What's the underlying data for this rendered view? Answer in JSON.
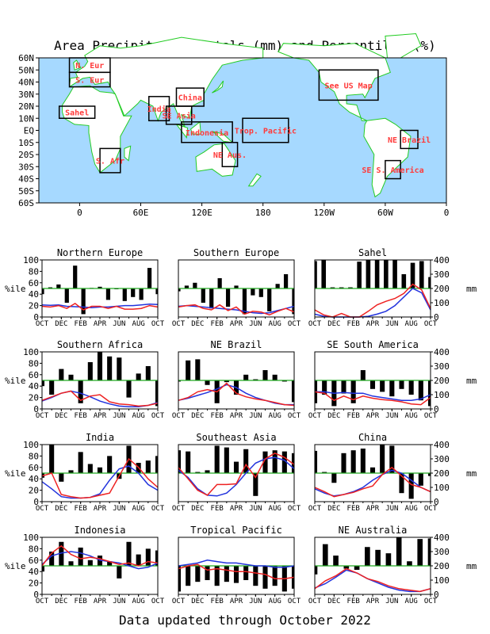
{
  "title": "Area Precipitation Totals (mm) and Percentiles (%)",
  "footer": "Data updated through October 2022",
  "map": {
    "lat_labels": [
      "60N",
      "50N",
      "40N",
      "30N",
      "20N",
      "10N",
      "EQ",
      "10S",
      "20S",
      "30S",
      "40S",
      "50S",
      "60S"
    ],
    "lon_labels": [
      "0",
      "60E",
      "120E",
      "180",
      "120W",
      "60W",
      "0"
    ],
    "lon_values": [
      0,
      60,
      120,
      180,
      240,
      300,
      360
    ],
    "lon_range": [
      -40,
      360
    ],
    "lat_range": [
      -60,
      60
    ],
    "colors": {
      "ocean": "#a6d9ff",
      "land": "#ffffff",
      "coast": "#22cc22",
      "box": "#000000",
      "label": "#ff3a3a"
    },
    "regions": [
      {
        "label": "N. Eur",
        "lon": [
          -10,
          30
        ],
        "lat": [
          48,
          60
        ]
      },
      {
        "label": "S. Eur",
        "lon": [
          -10,
          30
        ],
        "lat": [
          36,
          48
        ]
      },
      {
        "label": "Sahel",
        "lon": [
          -20,
          15
        ],
        "lat": [
          10,
          20
        ]
      },
      {
        "label": "S. Afr",
        "lon": [
          20,
          40
        ],
        "lat": [
          -35,
          -15
        ]
      },
      {
        "label": "India",
        "lon": [
          68,
          88
        ],
        "lat": [
          8,
          28
        ]
      },
      {
        "label": "China",
        "lon": [
          95,
          122
        ],
        "lat": [
          20,
          35
        ]
      },
      {
        "label": "SE Asia",
        "lon": [
          85,
          110
        ],
        "lat": [
          5,
          20
        ]
      },
      {
        "label": "Indonesia",
        "lon": [
          100,
          150
        ],
        "lat": [
          -10,
          7
        ]
      },
      {
        "label": "Trop. Pacific",
        "lon": [
          160,
          205
        ],
        "lat": [
          -10,
          10
        ]
      },
      {
        "label": "NE Aus.",
        "lon": [
          140,
          155
        ],
        "lat": [
          -30,
          -10
        ]
      },
      {
        "label": "See US Map",
        "lon": [
          235,
          293
        ],
        "lat": [
          25,
          50
        ]
      },
      {
        "label": "NE Brazil",
        "lon": [
          315,
          332
        ],
        "lat": [
          -15,
          0
        ]
      },
      {
        "label": "SE S. America",
        "lon": [
          300,
          315
        ],
        "lat": [
          -40,
          -25
        ]
      }
    ]
  },
  "panel_axis": {
    "left_label": "%ile",
    "right_label": "mm",
    "left_ticks": [
      "0",
      "20",
      "40",
      "60",
      "80",
      "100"
    ],
    "right_ticks": [
      "0",
      "100",
      "200",
      "300",
      "400"
    ],
    "month_ticks": [
      "OCT",
      "DEC",
      "FEB",
      "APR",
      "JUN",
      "AUG",
      "OCT"
    ],
    "bar_baseline_percentile": 50,
    "colors": {
      "bar": "#000000",
      "observed_mm": "#ee2222",
      "normal_mm": "#2233dd",
      "median_line": "#22aa22"
    }
  },
  "chart_data": [
    {
      "type": "bar",
      "title": "Northern Europe",
      "ylim": [
        0,
        100
      ],
      "y2lim": [
        0,
        400
      ],
      "percentiles": [
        40,
        52,
        57,
        25,
        90,
        5,
        51,
        53,
        30,
        50,
        28,
        35,
        30,
        86,
        40
      ],
      "observed_mm": [
        75,
        70,
        80,
        60,
        95,
        50,
        75,
        75,
        60,
        75,
        55,
        55,
        60,
        80,
        70
      ],
      "normal_mm": [
        85,
        82,
        85,
        75,
        72,
        70,
        65,
        70,
        70,
        75,
        80,
        80,
        85,
        90,
        88
      ]
    },
    {
      "type": "bar",
      "title": "Southern Europe",
      "ylim": [
        0,
        100
      ],
      "y2lim": [
        0,
        400
      ],
      "percentiles": [
        45,
        55,
        60,
        25,
        15,
        68,
        18,
        55,
        5,
        38,
        35,
        10,
        58,
        75,
        5
      ],
      "observed_mm": [
        70,
        80,
        85,
        60,
        50,
        85,
        45,
        70,
        20,
        40,
        35,
        15,
        40,
        60,
        35
      ],
      "normal_mm": [
        75,
        80,
        75,
        70,
        65,
        60,
        55,
        50,
        40,
        30,
        25,
        30,
        45,
        60,
        75
      ]
    },
    {
      "type": "bar",
      "title": "Sahel",
      "ylim": [
        0,
        100
      ],
      "y2lim": [
        0,
        400
      ],
      "percentiles": [
        98,
        100,
        52,
        52,
        52,
        97,
        100,
        100,
        100,
        100,
        75,
        95,
        98,
        70
      ],
      "observed_mm": [
        50,
        15,
        0,
        25,
        0,
        0,
        40,
        85,
        110,
        130,
        165,
        230,
        190,
        60
      ],
      "normal_mm": [
        20,
        5,
        0,
        0,
        0,
        0,
        5,
        20,
        40,
        80,
        140,
        200,
        170,
        50
      ]
    },
    {
      "type": "bar",
      "title": "Southern Africa",
      "ylim": [
        0,
        100
      ],
      "y2lim": [
        0,
        400
      ],
      "percentiles": [
        40,
        25,
        70,
        60,
        10,
        82,
        100,
        92,
        90,
        20,
        62,
        75,
        5
      ],
      "observed_mm": [
        60,
        85,
        110,
        125,
        60,
        90,
        100,
        50,
        35,
        30,
        20,
        25,
        40
      ],
      "normal_mm": [
        55,
        80,
        110,
        125,
        110,
        85,
        55,
        35,
        20,
        15,
        15,
        25,
        45
      ]
    },
    {
      "type": "bar",
      "title": "NE Brazil",
      "ylim": [
        0,
        100
      ],
      "y2lim": [
        0,
        400
      ],
      "percentiles": [
        48,
        85,
        87,
        42,
        10,
        47,
        25,
        60,
        52,
        68,
        60,
        48,
        12
      ],
      "observed_mm": [
        60,
        80,
        120,
        135,
        120,
        180,
        110,
        85,
        70,
        60,
        45,
        30,
        25
      ],
      "normal_mm": [
        60,
        75,
        95,
        115,
        140,
        170,
        150,
        110,
        80,
        60,
        40,
        30,
        30
      ]
    },
    {
      "type": "bar",
      "title": "SE South America",
      "ylim": [
        0,
        100
      ],
      "y2lim": [
        0,
        400
      ],
      "percentiles": [
        10,
        25,
        5,
        27,
        10,
        68,
        35,
        30,
        22,
        35,
        25,
        15,
        5
      ],
      "observed_mm": [
        120,
        110,
        60,
        90,
        65,
        90,
        75,
        65,
        60,
        50,
        35,
        30,
        80
      ],
      "normal_mm": [
        120,
        120,
        110,
        115,
        110,
        110,
        90,
        80,
        70,
        60,
        60,
        70,
        100
      ]
    },
    {
      "type": "bar",
      "title": "India",
      "ylim": [
        0,
        100
      ],
      "y2lim": [
        0,
        400
      ],
      "percentiles": [
        42,
        100,
        35,
        55,
        87,
        66,
        60,
        80,
        40,
        98,
        68,
        72,
        80
      ],
      "observed_mm": [
        180,
        200,
        50,
        35,
        25,
        30,
        45,
        60,
        180,
        300,
        240,
        160,
        100
      ],
      "normal_mm": [
        140,
        90,
        35,
        25,
        25,
        30,
        55,
        150,
        230,
        250,
        200,
        120,
        80
      ]
    },
    {
      "type": "bar",
      "title": "Southeast Asia",
      "ylim": [
        0,
        100
      ],
      "y2lim": [
        0,
        400
      ],
      "percentiles": [
        90,
        88,
        52,
        55,
        98,
        95,
        70,
        92,
        10,
        88,
        90,
        88,
        85
      ],
      "observed_mm": [
        240,
        160,
        80,
        45,
        120,
        120,
        125,
        260,
        170,
        300,
        340,
        310,
        260
      ],
      "normal_mm": [
        220,
        170,
        90,
        45,
        40,
        60,
        120,
        200,
        270,
        300,
        310,
        290,
        230
      ]
    },
    {
      "type": "bar",
      "title": "China",
      "ylim": [
        0,
        100
      ],
      "y2lim": [
        0,
        400
      ],
      "percentiles": [
        89,
        52,
        33,
        85,
        90,
        93,
        60,
        100,
        98,
        15,
        5,
        28,
        45
      ],
      "observed_mm": [
        100,
        70,
        35,
        50,
        65,
        90,
        110,
        190,
        240,
        180,
        120,
        100,
        70
      ],
      "normal_mm": [
        90,
        60,
        40,
        50,
        70,
        100,
        150,
        190,
        220,
        200,
        150,
        100,
        70
      ]
    },
    {
      "type": "bar",
      "title": "Indonesia",
      "ylim": [
        0,
        100
      ],
      "y2lim": [
        0,
        400
      ],
      "percentiles": [
        40,
        75,
        92,
        58,
        82,
        60,
        68,
        58,
        28,
        92,
        70,
        80,
        77
      ],
      "observed_mm": [
        200,
        290,
        340,
        280,
        250,
        260,
        250,
        230,
        210,
        220,
        200,
        230,
        220
      ],
      "normal_mm": [
        210,
        270,
        290,
        300,
        290,
        270,
        240,
        230,
        220,
        200,
        180,
        190,
        220
      ]
    },
    {
      "type": "bar",
      "title": "Tropical Pacific",
      "ylim": [
        0,
        100
      ],
      "y2lim": [
        0,
        400
      ],
      "percentiles": [
        5,
        15,
        22,
        25,
        15,
        22,
        20,
        25,
        15,
        10,
        15,
        5,
        10
      ],
      "observed_mm": [
        180,
        200,
        210,
        170,
        180,
        170,
        160,
        160,
        150,
        140,
        110,
        110,
        120
      ],
      "normal_mm": [
        200,
        210,
        220,
        240,
        230,
        220,
        220,
        210,
        200,
        200,
        190,
        190,
        200
      ]
    },
    {
      "type": "bar",
      "title": "NE Australia",
      "ylim": [
        0,
        100
      ],
      "y2lim": [
        0,
        400
      ],
      "percentiles": [
        35,
        88,
        68,
        45,
        43,
        83,
        78,
        72,
        100,
        58,
        97,
        98
      ],
      "observed_mm": [
        40,
        95,
        130,
        180,
        150,
        110,
        90,
        60,
        40,
        30,
        20,
        40
      ],
      "normal_mm": [
        45,
        75,
        120,
        170,
        150,
        110,
        80,
        50,
        30,
        20,
        20,
        40
      ]
    }
  ]
}
